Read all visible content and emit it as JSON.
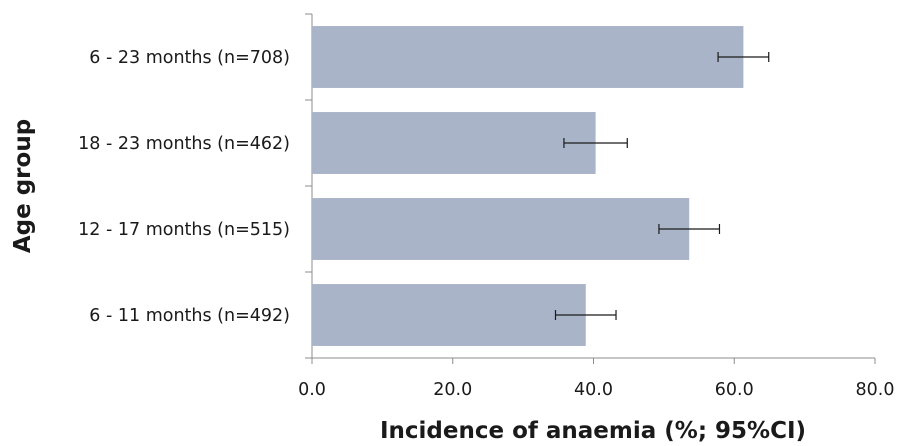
{
  "chart_data": {
    "type": "bar",
    "orientation": "horizontal",
    "title": "",
    "xlabel": "Incidence of anaemia (%; 95%CI)",
    "ylabel": "Age group",
    "xlim": [
      0,
      80
    ],
    "xticks": [
      "0.0",
      "20.0",
      "40.0",
      "60.0",
      "80.0"
    ],
    "categories": [
      "6 - 23 months (n=708)",
      "18 - 23 months (n=462)",
      "12 - 17 months (n=515)",
      "6 - 11 months (n=492)"
    ],
    "values": [
      61.3,
      40.3,
      53.6,
      38.9
    ],
    "ci_low": [
      57.7,
      35.8,
      49.3,
      34.6
    ],
    "ci_high": [
      64.9,
      44.8,
      57.9,
      43.2
    ],
    "bar_color": "#aab4c8",
    "error_bar_color": "#1a1a1a",
    "grid": false,
    "legend": "none"
  }
}
